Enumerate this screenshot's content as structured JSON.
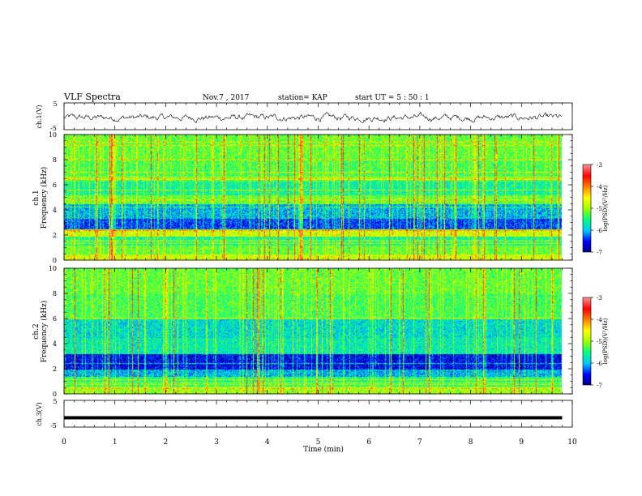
{
  "header": {
    "title": "VLF Spectra",
    "date": "Nov.7 , 2017",
    "station": "station= KAP",
    "start_time": "start UT = 5 : 50 : 1"
  },
  "colors": {
    "ramp": [
      "#00007a",
      "#0000ff",
      "#00c8ff",
      "#00ff80",
      "#a0ff00",
      "#ffff00",
      "#ff8000",
      "#ff0000",
      "#ff9090"
    ]
  },
  "chart_data": [
    {
      "type": "line",
      "name": "ch1-waveform",
      "ylabel": "ch.1(V)",
      "ylim": [
        -5,
        5
      ],
      "yticks": [
        "5",
        "-5"
      ],
      "xlim": [
        0,
        10
      ],
      "description_values": "amplitude fluctuates between about -3 V and +2 V over 0-9.8 min"
    },
    {
      "type": "heatmap",
      "name": "ch1-spectrogram",
      "ylabel": "ch.1\nFrequency (kHz)",
      "yticks": [
        "0",
        "2",
        "4",
        "6",
        "8",
        "10"
      ],
      "ylim": [
        0,
        10
      ],
      "xlim": [
        0,
        10
      ],
      "data_extent_min": 9.8,
      "colorbar": {
        "label": "log(PSD)(V²/Hz)",
        "ticks": [
          "-3",
          "-4",
          "-5",
          "-6",
          "-7"
        ],
        "range": [
          -7,
          -3
        ]
      },
      "bands": [
        {
          "f0": 0.0,
          "f1": 0.5,
          "level": 0.55
        },
        {
          "f0": 0.5,
          "f1": 1.2,
          "level": 0.45
        },
        {
          "f0": 1.2,
          "f1": 1.9,
          "level": 0.35
        },
        {
          "f0": 1.9,
          "f1": 2.5,
          "level": 0.55
        },
        {
          "f0": 2.5,
          "f1": 3.3,
          "level": 0.15
        },
        {
          "f0": 3.3,
          "f1": 4.5,
          "level": 0.25
        },
        {
          "f0": 4.5,
          "f1": 5.2,
          "level": 0.45
        },
        {
          "f0": 5.2,
          "f1": 6.3,
          "level": 0.35
        },
        {
          "f0": 6.3,
          "f1": 8.0,
          "level": 0.42
        },
        {
          "f0": 8.0,
          "f1": 10.0,
          "level": 0.45
        }
      ]
    },
    {
      "type": "heatmap",
      "name": "ch2-spectrogram",
      "ylabel": "ch.2\nFrequency (kHz)",
      "yticks": [
        "0",
        "2",
        "4",
        "6",
        "8",
        "10"
      ],
      "ylim": [
        0,
        10
      ],
      "xlim": [
        0,
        10
      ],
      "data_extent_min": 9.8,
      "colorbar": {
        "label": "log(PSD)(V²/Hz)",
        "ticks": [
          "-3",
          "-4",
          "-5",
          "-6",
          "-7"
        ],
        "range": [
          -7,
          -3
        ]
      },
      "bands": [
        {
          "f0": 0.0,
          "f1": 0.6,
          "level": 0.5
        },
        {
          "f0": 0.6,
          "f1": 1.4,
          "level": 0.38
        },
        {
          "f0": 1.4,
          "f1": 2.0,
          "level": 0.25
        },
        {
          "f0": 2.0,
          "f1": 3.2,
          "level": 0.1
        },
        {
          "f0": 3.2,
          "f1": 4.5,
          "level": 0.33
        },
        {
          "f0": 4.5,
          "f1": 6.0,
          "level": 0.3
        },
        {
          "f0": 6.0,
          "f1": 8.0,
          "level": 0.42
        },
        {
          "f0": 8.0,
          "f1": 10.0,
          "level": 0.45
        }
      ]
    },
    {
      "type": "line",
      "name": "ch3-waveform",
      "ylabel": "ch.3(V)",
      "ylim": [
        -5,
        5
      ],
      "yticks": [
        "5",
        "-5"
      ],
      "xlim": [
        0,
        10
      ],
      "xlabel": "Time (min)",
      "xticks": [
        "0",
        "1",
        "2",
        "3",
        "4",
        "5",
        "6",
        "7",
        "8",
        "9",
        "10"
      ],
      "level_volts": -1.5
    }
  ]
}
